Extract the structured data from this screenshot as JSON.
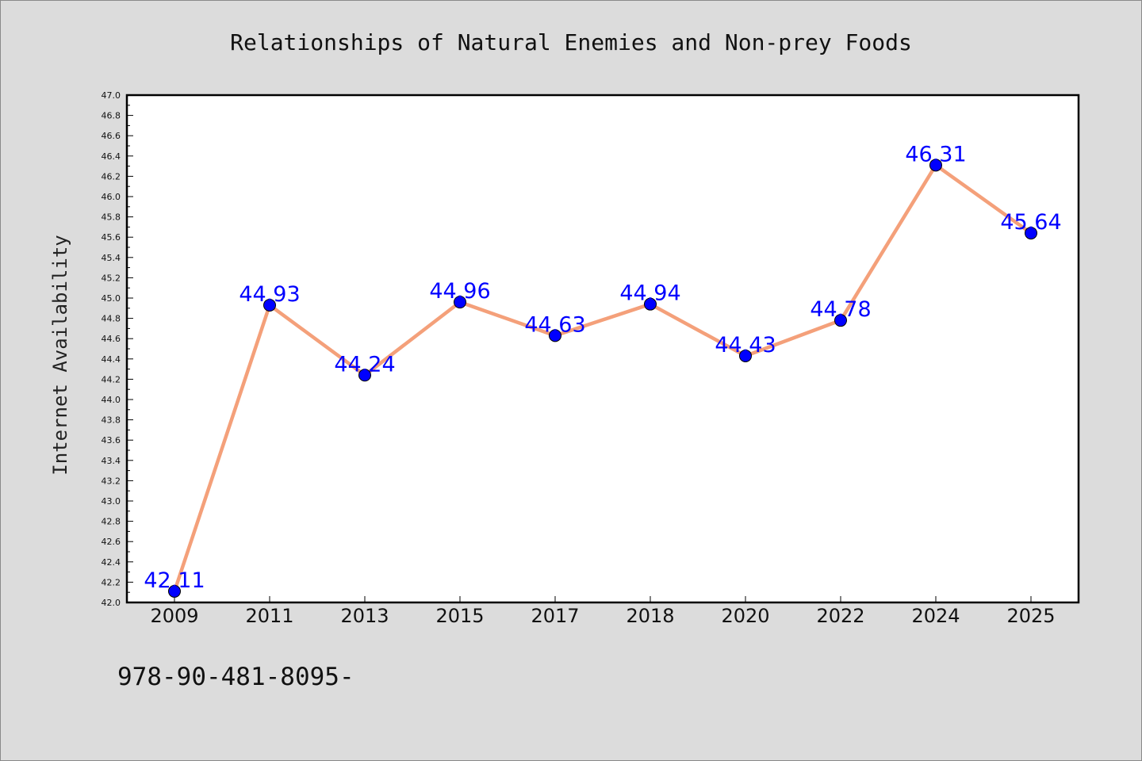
{
  "chart_data": {
    "type": "line",
    "title": "Relationships of Natural Enemies and Non-prey Foods",
    "xlabel": "",
    "ylabel": "Internet Availability",
    "categories": [
      "2009",
      "2011",
      "2013",
      "2015",
      "2017",
      "2018",
      "2020",
      "2022",
      "2024",
      "2025"
    ],
    "series": [
      {
        "values": [
          42.11,
          44.93,
          44.24,
          44.96,
          44.63,
          44.94,
          44.43,
          44.78,
          46.31,
          45.64
        ]
      }
    ],
    "data_labels": [
      "42.11",
      "44.93",
      "44.24",
      "44.96",
      "44.63",
      "44.94",
      "44.43",
      "44.78",
      "46.31",
      "45.64"
    ],
    "ylim": [
      42.0,
      47.0
    ],
    "yticks": [
      "42.0",
      "42.2",
      "42.4",
      "42.6",
      "42.8",
      "43.0",
      "43.2",
      "43.4",
      "43.6",
      "43.8",
      "44.0",
      "44.2",
      "44.4",
      "44.6",
      "44.8",
      "45.0",
      "45.2",
      "45.4",
      "45.6",
      "45.8",
      "46.0",
      "46.2",
      "46.4",
      "46.6",
      "46.8",
      "47.0"
    ],
    "grid": false,
    "line_color": "#f4a07a",
    "marker_color": "#0000ff",
    "label_color": "#0000ff",
    "plot_background": "#ffffff",
    "page_background": "#dcdcdc"
  },
  "footer": {
    "isbn": "978-90-481-8095-"
  }
}
